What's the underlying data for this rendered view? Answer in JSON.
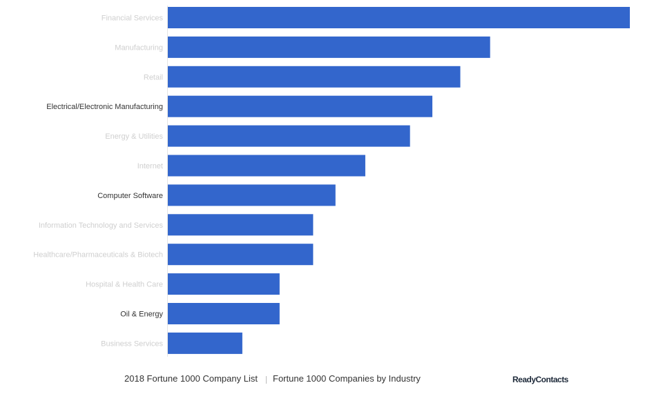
{
  "chart_data": {
    "type": "bar",
    "orientation": "horizontal",
    "categories": [
      "Financial Services",
      "Manufacturing",
      "Retail",
      "Electrical/Electronic Manufacturing",
      "Energy & Utilities",
      "Internet",
      "Computer Software",
      "Information Technology and Services",
      "Healthcare/Pharmaceuticals & Biotech",
      "Hospital & Health Care",
      "Oil & Energy",
      "Business Services"
    ],
    "faded": [
      true,
      true,
      true,
      false,
      true,
      true,
      false,
      true,
      true,
      true,
      false,
      true
    ],
    "values": [
      124,
      86.5,
      78.5,
      71,
      65,
      53,
      45,
      39,
      39,
      30,
      30,
      20
    ],
    "xlim": [
      0,
      124
    ],
    "bar_color": "#3366cc",
    "grid": false
  },
  "footer": {
    "link1": "2018 Fortune 1000 Company List",
    "link2": "Fortune 1000 Companies by Industry",
    "brand": "ReadyContacts"
  }
}
